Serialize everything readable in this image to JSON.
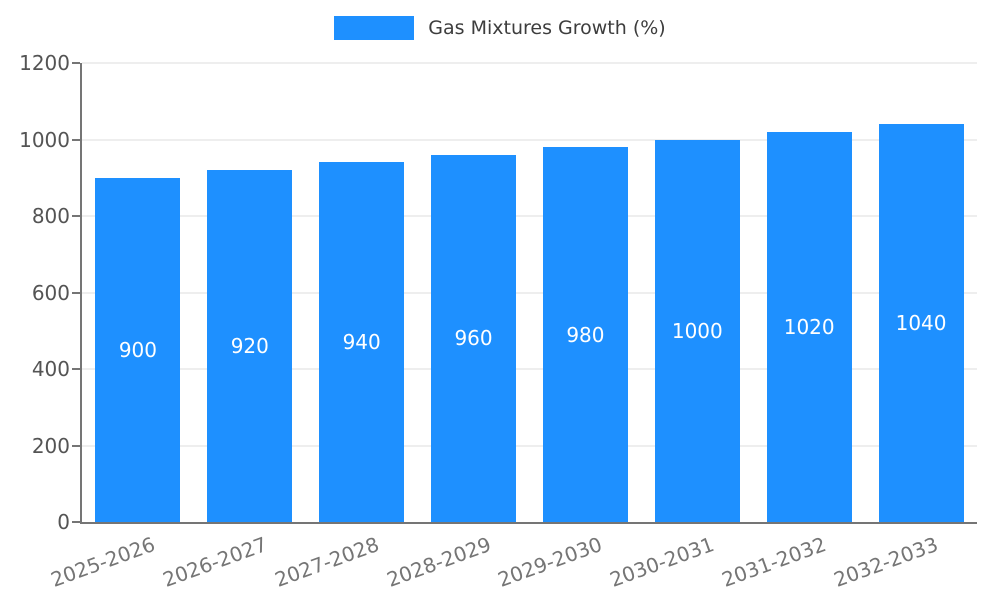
{
  "colors": {
    "background": "#ffffff",
    "bar": "#1E90FF",
    "grid": "#dcdcdc",
    "axis": "#757575",
    "y_label": "#545454",
    "x_label": "#757575",
    "bar_label": "#ffffff",
    "legend_text": "#3d3d3d"
  },
  "chart_data": {
    "type": "bar",
    "legend": "Gas Mixtures Growth (%)",
    "title": "",
    "xlabel": "",
    "ylabel": "",
    "categories": [
      "2025-2026",
      "2026-2027",
      "2027-2028",
      "2028-2029",
      "2029-2030",
      "2030-2031",
      "2031-2032",
      "2032-2033"
    ],
    "values": [
      900,
      920,
      940,
      960,
      980,
      1000,
      1020,
      1040
    ],
    "ylim": [
      0,
      1200
    ],
    "yticks": [
      0,
      200,
      400,
      600,
      800,
      1000,
      1200
    ],
    "grid": true,
    "legend_position": "top",
    "bar_labels": true
  }
}
